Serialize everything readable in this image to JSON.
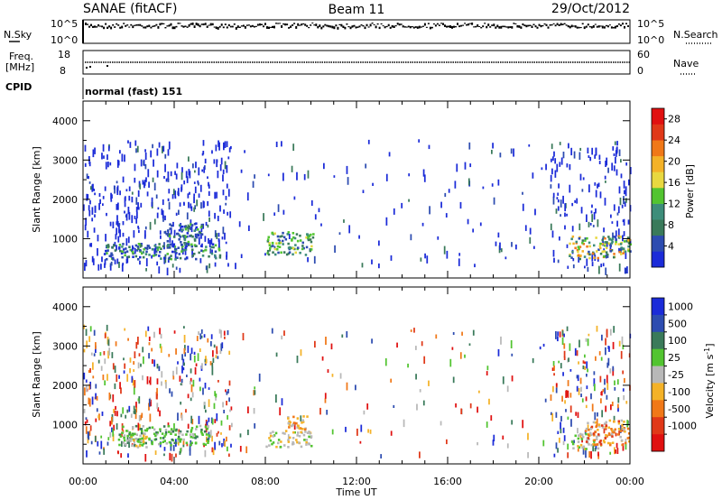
{
  "header": {
    "station": "SANAE (fitACF)",
    "beam": "Beam 11",
    "date": "29/Oct/2012"
  },
  "top_panels": {
    "nsky": {
      "label": "N.Sky",
      "ticks": [
        "10^5",
        "10^0"
      ],
      "right_label": "N.Search",
      "right_ticks": [
        "10^5",
        "10^0"
      ]
    },
    "freq": {
      "label_line1": "Freq.",
      "label_line2": "[MHz]",
      "ticks": [
        "18",
        "8"
      ],
      "right_label": "Nave",
      "right_ticks": [
        "60",
        "0"
      ]
    },
    "cpid": {
      "label": "CPID",
      "value": "normal (fast) 151"
    }
  },
  "colors": {
    "power_scale": [
      "#1b2bd8",
      "#2d4cb0",
      "#3a7a5a",
      "#3d8d7a",
      "#52c430",
      "#e8d840",
      "#f4b228",
      "#f07818",
      "#e03818",
      "#e01010"
    ],
    "velocity_scale": [
      "#1b2bd8",
      "#2d4cb0",
      "#3a7a5a",
      "#52c430",
      "#b8b8b8",
      "#f4b228",
      "#f07818",
      "#e03818",
      "#e01010"
    ]
  },
  "chart_data": [
    {
      "type": "heatmap",
      "panel": "power",
      "ylabel": "Slant Range [km]",
      "xlabel": "",
      "yticks": [
        "1000",
        "2000",
        "3000",
        "4000"
      ],
      "ylim": [
        0,
        4500
      ],
      "xlim_hours": [
        0,
        24
      ],
      "xticks": [
        "00:00",
        "04:00",
        "08:00",
        "12:00",
        "16:00",
        "20:00",
        "00:00"
      ],
      "colorbar": {
        "label": "Power [dB]",
        "ticks": [
          "4",
          "8",
          "12",
          "16",
          "20",
          "24",
          "28"
        ],
        "range": [
          0,
          30
        ]
      },
      "regions": [
        {
          "t_start": 0.9,
          "t_end": 6.0,
          "r_start": 500,
          "r_end": 900,
          "level": "low-mid"
        },
        {
          "t_start": 3.5,
          "t_end": 5.2,
          "r_start": 800,
          "r_end": 1450,
          "level": "low-mid"
        },
        {
          "t_start": 8.0,
          "t_end": 10.1,
          "r_start": 600,
          "r_end": 1200,
          "level": "mid"
        },
        {
          "t_start": 21.3,
          "t_end": 24.0,
          "r_start": 500,
          "r_end": 1100,
          "level": "mid-high"
        }
      ]
    },
    {
      "type": "heatmap",
      "panel": "velocity",
      "ylabel": "Slant Range [km]",
      "xlabel": "Time UT",
      "yticks": [
        "1000",
        "2000",
        "3000",
        "4000"
      ],
      "ylim": [
        0,
        4500
      ],
      "xlim_hours": [
        0,
        24
      ],
      "xticks": [
        "00:00",
        "04:00",
        "08:00",
        "12:00",
        "16:00",
        "20:00",
        "00:00"
      ],
      "colorbar": {
        "label": "Velocity [m s",
        "label_sup": "-1",
        "label_end": "]",
        "ticks": [
          "1000",
          "500",
          "100",
          "25",
          "-25",
          "-100",
          "-500",
          "-1000"
        ]
      },
      "regions": [
        {
          "t_start": 1.5,
          "t_end": 5.5,
          "r_start": 500,
          "r_end": 1000,
          "level": "positive-low"
        },
        {
          "t_start": 1.8,
          "t_end": 2.8,
          "r_start": 450,
          "r_end": 800,
          "level": "near-zero"
        },
        {
          "t_start": 8.0,
          "t_end": 10.0,
          "r_start": 450,
          "r_end": 850,
          "level": "near-zero"
        },
        {
          "t_start": 8.8,
          "t_end": 9.8,
          "r_start": 850,
          "r_end": 1250,
          "level": "negative-low"
        },
        {
          "t_start": 21.4,
          "t_end": 22.6,
          "r_start": 400,
          "r_end": 800,
          "level": "near-zero"
        },
        {
          "t_start": 22.0,
          "t_end": 24.0,
          "r_start": 500,
          "r_end": 1150,
          "level": "negative-mid"
        }
      ]
    }
  ]
}
